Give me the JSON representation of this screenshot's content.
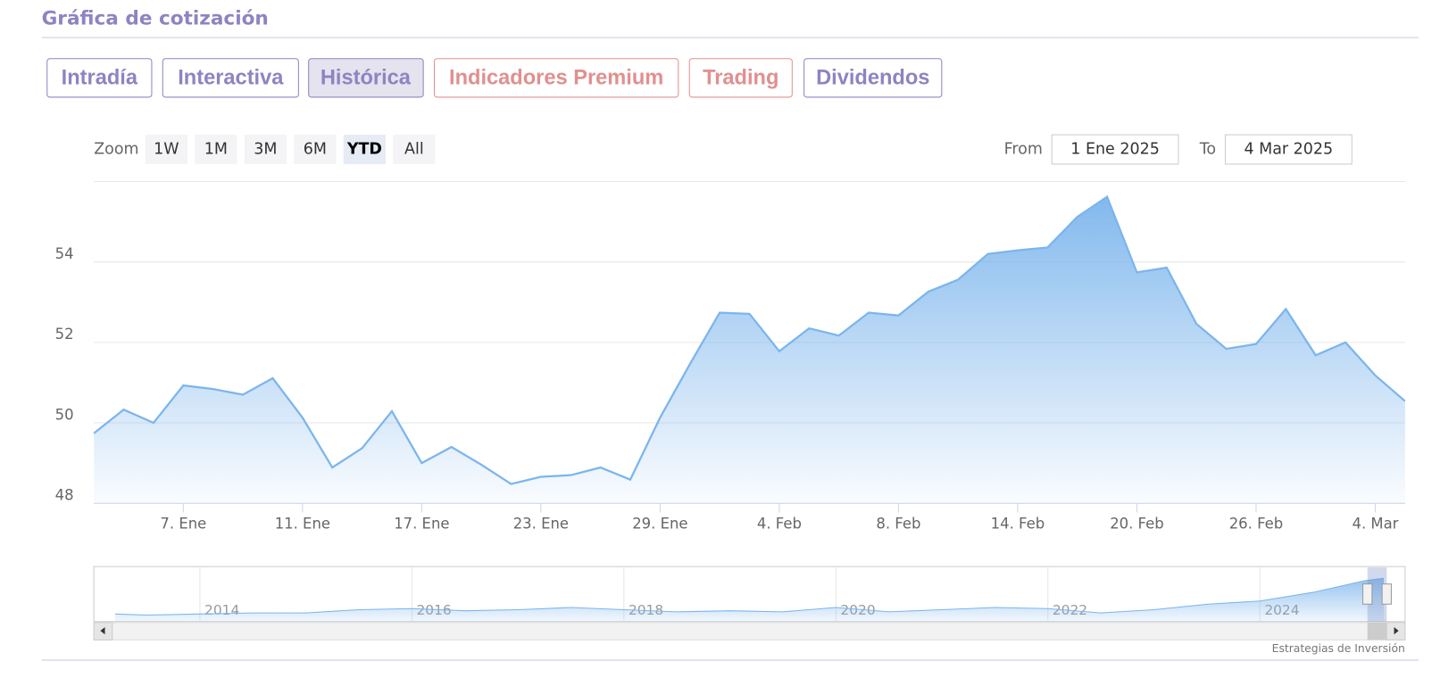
{
  "header": {
    "title": "Gráfica de cotización"
  },
  "tabs": [
    "Intradía",
    "Interactiva",
    "Histórica",
    "Indicadores Premium",
    "Trading",
    "Dividendos"
  ],
  "range_selector": {
    "label": "Zoom",
    "buttons": [
      "1W",
      "1M",
      "3M",
      "6M",
      "YTD",
      "All"
    ],
    "from_label": "From",
    "from": "1 Ene 2025",
    "to_label": "To",
    "to": "4 Mar 2025"
  },
  "credit": "Estrategias de Inversión",
  "chart_data": {
    "type": "area",
    "color": "#7cb5ec",
    "grid": true,
    "categories": [
      null,
      null,
      null,
      "7. Ene",
      null,
      null,
      null,
      "11. Ene",
      null,
      null,
      null,
      "17. Ene",
      null,
      null,
      null,
      "23. Ene",
      null,
      null,
      null,
      "29. Ene",
      null,
      null,
      null,
      "4. Feb",
      null,
      null,
      null,
      "8. Feb",
      null,
      null,
      null,
      "14. Feb",
      null,
      null,
      null,
      "20. Feb",
      null,
      null,
      null,
      "26. Feb",
      null,
      null,
      null,
      "4. Mar",
      null
    ],
    "values": [
      49.74,
      50.33,
      50.0,
      50.93,
      50.84,
      50.7,
      51.11,
      50.13,
      48.89,
      49.37,
      50.29,
      49.0,
      49.4,
      48.96,
      48.48,
      48.66,
      48.7,
      48.89,
      48.59,
      50.13,
      51.46,
      52.74,
      52.71,
      51.78,
      52.35,
      52.17,
      52.74,
      52.67,
      53.26,
      53.56,
      54.2,
      54.29,
      54.36,
      55.12,
      55.62,
      53.74,
      53.86,
      52.46,
      51.84,
      51.96,
      52.83,
      51.68,
      52.0,
      51.18,
      50.54
    ],
    "ylim": [
      48,
      56
    ],
    "yticks": [
      48,
      50,
      52,
      54
    ],
    "navigator": {
      "x": [
        2013.2,
        2013.5,
        2014,
        2014.5,
        2015,
        2015.5,
        2016,
        2016.5,
        2017,
        2017.5,
        2018,
        2018.5,
        2019,
        2019.5,
        2020,
        2020.5,
        2021,
        2021.5,
        2022,
        2022.5,
        2023,
        2023.5,
        2024,
        2024.5,
        2025,
        2025.17
      ],
      "values": [
        17,
        16,
        17,
        18,
        18,
        21,
        22,
        20,
        21,
        23,
        21,
        19,
        20,
        19,
        23,
        19,
        21,
        23,
        22,
        18,
        21,
        26,
        29,
        37,
        48,
        50
      ],
      "xlim": [
        2013,
        2025.37
      ],
      "ylim": [
        10,
        60
      ],
      "xticks": [
        2014,
        2016,
        2018,
        2020,
        2022,
        2024
      ]
    }
  }
}
